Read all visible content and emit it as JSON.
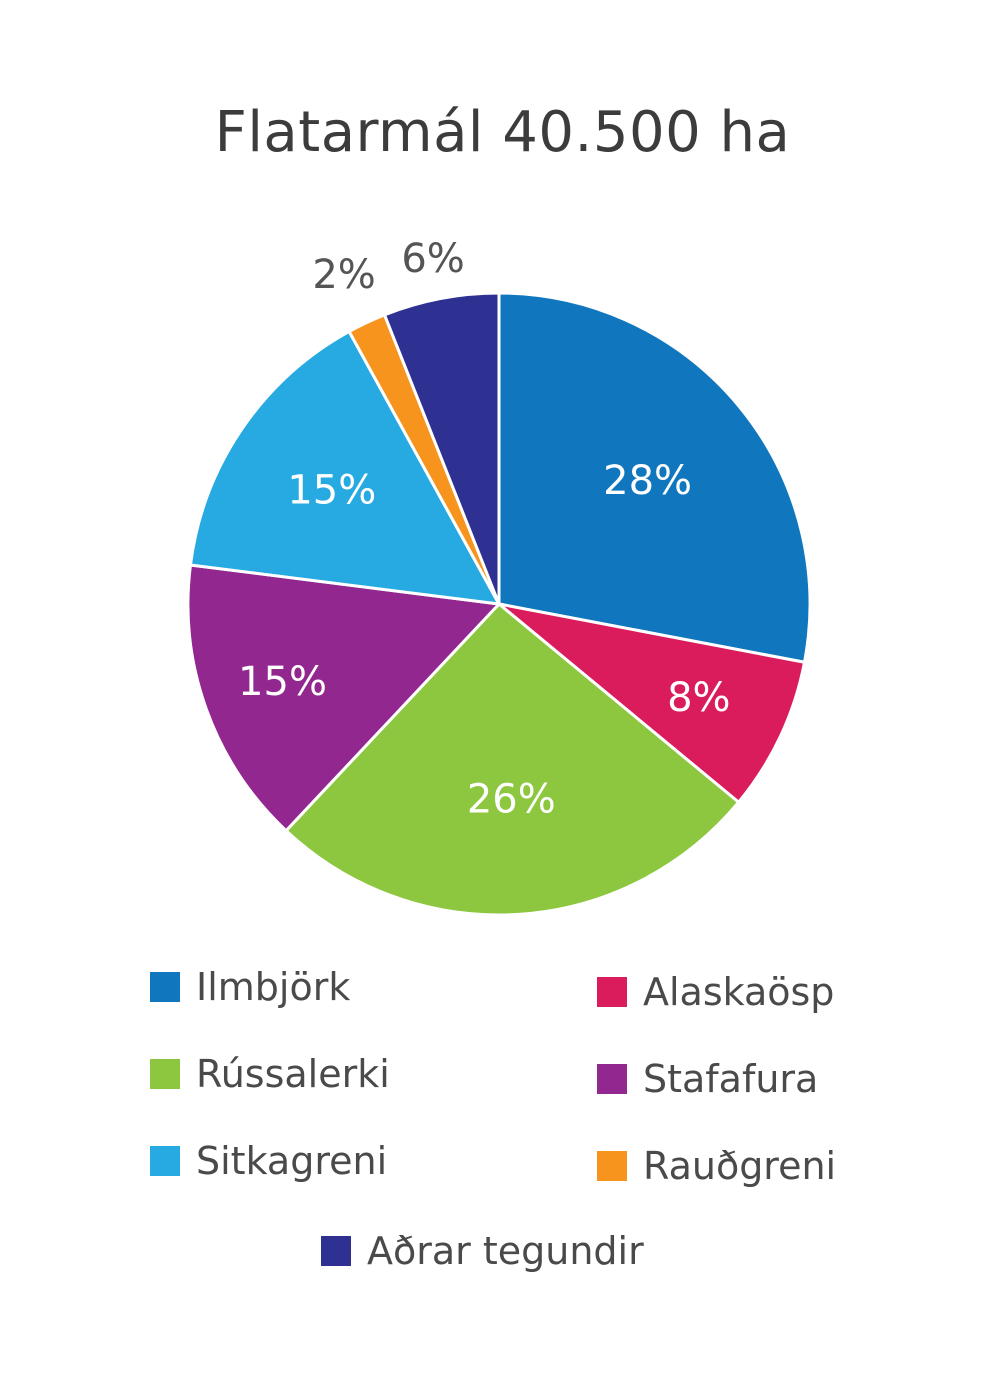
{
  "chart_data": {
    "type": "pie",
    "title": "Flatarmál 40.500 ha",
    "slices": [
      {
        "name": "Ilmbjörk",
        "value": 28,
        "label": "28%",
        "color": "#1077bf"
      },
      {
        "name": "Alaskaösp",
        "value": 8,
        "label": "8%",
        "color": "#da1c5c"
      },
      {
        "name": "Rússalerki",
        "value": 26,
        "label": "26%",
        "color": "#8dc63f"
      },
      {
        "name": "Stafafura",
        "value": 15,
        "label": "15%",
        "color": "#92278f"
      },
      {
        "name": "Sitkagreni",
        "value": 15,
        "label": "15%",
        "color": "#27a9e1"
      },
      {
        "name": "Rauðgreni",
        "value": 2,
        "label": "2%",
        "color": "#f7941d"
      },
      {
        "name": "Aðrar tegundir",
        "value": 6,
        "label": "6%",
        "color": "#2e3192"
      }
    ],
    "legend_placement": "bottom"
  }
}
